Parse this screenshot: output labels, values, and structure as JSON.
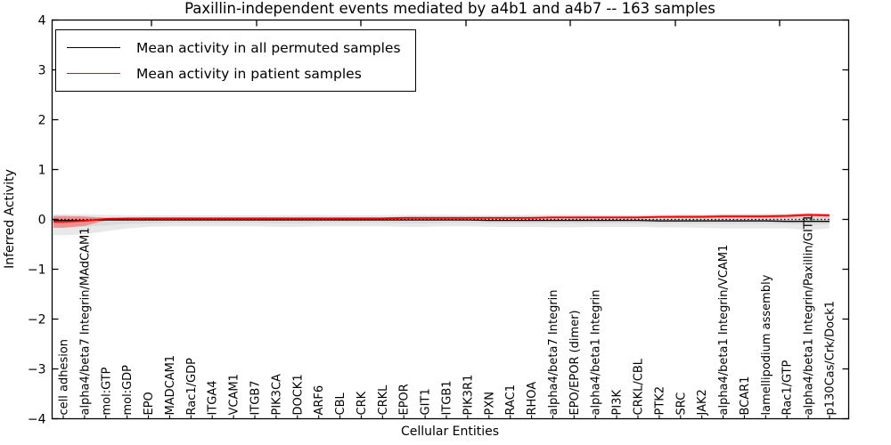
{
  "figure": {
    "title": "Paxillin-independent events mediated by a4b1 and a4b7 -- 163 samples",
    "xlabel": "Cellular Entities",
    "ylabel": "Inferred Activity"
  },
  "legend": {
    "items": [
      {
        "label": "Mean activity in all permuted samples",
        "color": "#000000"
      },
      {
        "label": "Mean activity in patient samples",
        "color": "#ff0000"
      }
    ]
  },
  "chart_data": {
    "type": "line",
    "title": "Paxillin-independent events mediated by a4b1 and a4b7 -- 163 samples",
    "xlabel": "Cellular Entities",
    "ylabel": "Inferred Activity",
    "ylim": [
      -4,
      4
    ],
    "yticks": [
      4,
      3,
      2,
      1,
      0,
      -1,
      -2,
      -3,
      -4
    ],
    "yticklabels": [
      "4",
      "3",
      "2",
      "1",
      "0",
      "−1",
      "−2",
      "−3",
      "−4"
    ],
    "grid": false,
    "legend_position": "upper left",
    "baseline": {
      "y": 0,
      "style": "dotted",
      "color": "#000000"
    },
    "categories": [
      "cell adhesion",
      "alpha4/beta7 Integrin/MAdCAM1",
      "mol:GTP",
      "mol:GDP",
      "EPO",
      "MADCAM1",
      "Rac1/GDP",
      "ITGA4",
      "VCAM1",
      "ITGB7",
      "PIK3CA",
      "DOCK1",
      "ARF6",
      "CBL",
      "CRK",
      "CRKL",
      "EPOR",
      "GIT1",
      "ITGB1",
      "PIK3R1",
      "PXN",
      "RAC1",
      "RHOA",
      "alpha4/beta7 Integrin",
      "EPO/EPOR (dimer)",
      "alpha4/beta1 Integrin",
      "PI3K",
      "CRKL/CBL",
      "PTK2",
      "SRC",
      "JAK2",
      "alpha4/beta1 Integrin/VCAM1",
      "BCAR1",
      "lamellipodium assembly",
      "Rac1/GTP",
      "alpha4/beta1 Integrin/Paxillin/GIT1",
      "p130Cas/Crk/Dock1"
    ],
    "series": [
      {
        "name": "Mean activity in all permuted samples",
        "color": "#000000",
        "style": "solid",
        "values": [
          -0.02,
          -0.02,
          -0.01,
          -0.01,
          -0.01,
          -0.01,
          -0.01,
          -0.01,
          -0.01,
          -0.01,
          -0.01,
          -0.01,
          -0.01,
          -0.01,
          -0.01,
          -0.01,
          -0.01,
          -0.01,
          -0.01,
          -0.01,
          -0.02,
          -0.02,
          -0.02,
          -0.02,
          -0.02,
          -0.02,
          -0.02,
          -0.02,
          -0.03,
          -0.03,
          -0.03,
          -0.03,
          -0.03,
          -0.03,
          -0.04,
          -0.04,
          -0.04
        ]
      },
      {
        "name": "Mean activity in patient samples",
        "color": "#ff0000",
        "style": "solid",
        "values": [
          -0.05,
          -0.03,
          0.01,
          0.02,
          0.02,
          0.02,
          0.02,
          0.02,
          0.02,
          0.02,
          0.02,
          0.02,
          0.02,
          0.02,
          0.02,
          0.02,
          0.03,
          0.03,
          0.03,
          0.03,
          0.03,
          0.03,
          0.03,
          0.04,
          0.04,
          0.04,
          0.04,
          0.04,
          0.05,
          0.05,
          0.05,
          0.06,
          0.06,
          0.06,
          0.07,
          0.09,
          0.08
        ]
      }
    ],
    "bands": [
      {
        "name": "permuted-outer-band",
        "color": "#e8e8e8",
        "upper": [
          0.1,
          0.1,
          0.09,
          0.08,
          0.08,
          0.08,
          0.08,
          0.08,
          0.08,
          0.08,
          0.08,
          0.09,
          0.09,
          0.08,
          0.08,
          0.08,
          0.09,
          0.09,
          0.09,
          0.08,
          0.08,
          0.09,
          0.09,
          0.1,
          0.1,
          0.09,
          0.09,
          0.09,
          0.1,
          0.1,
          0.1,
          0.11,
          0.11,
          0.11,
          0.11,
          0.13,
          0.11
        ],
        "lower": [
          -0.32,
          -0.3,
          -0.24,
          -0.18,
          -0.15,
          -0.14,
          -0.14,
          -0.14,
          -0.14,
          -0.14,
          -0.15,
          -0.15,
          -0.14,
          -0.14,
          -0.14,
          -0.14,
          -0.15,
          -0.15,
          -0.14,
          -0.14,
          -0.15,
          -0.15,
          -0.15,
          -0.16,
          -0.16,
          -0.15,
          -0.15,
          -0.15,
          -0.16,
          -0.16,
          -0.17,
          -0.18,
          -0.18,
          -0.18,
          -0.18,
          -0.22,
          -0.18
        ]
      },
      {
        "name": "permuted-inner-band",
        "color": "#dadada",
        "upper": [
          0.05,
          0.05,
          0.04,
          0.04,
          0.04,
          0.04,
          0.04,
          0.04,
          0.04,
          0.04,
          0.04,
          0.04,
          0.04,
          0.04,
          0.04,
          0.04,
          0.04,
          0.04,
          0.04,
          0.04,
          0.04,
          0.04,
          0.04,
          0.05,
          0.05,
          0.04,
          0.04,
          0.04,
          0.05,
          0.05,
          0.05,
          0.05,
          0.05,
          0.05,
          0.05,
          0.06,
          0.05
        ],
        "lower": [
          -0.16,
          -0.15,
          -0.12,
          -0.09,
          -0.08,
          -0.07,
          -0.07,
          -0.07,
          -0.07,
          -0.07,
          -0.08,
          -0.08,
          -0.07,
          -0.07,
          -0.07,
          -0.07,
          -0.08,
          -0.08,
          -0.07,
          -0.07,
          -0.08,
          -0.08,
          -0.08,
          -0.08,
          -0.08,
          -0.08,
          -0.08,
          -0.08,
          -0.08,
          -0.08,
          -0.09,
          -0.09,
          -0.09,
          -0.09,
          -0.09,
          -0.11,
          -0.09
        ]
      },
      {
        "name": "patient-band",
        "color": "rgba(255,60,60,0.45)",
        "upper": [
          0.07,
          0.06,
          0.03,
          0.03,
          0.04,
          0.04,
          0.04,
          0.04,
          0.04,
          0.04,
          0.04,
          0.04,
          0.04,
          0.04,
          0.04,
          0.04,
          0.05,
          0.05,
          0.05,
          0.05,
          0.05,
          0.05,
          0.05,
          0.06,
          0.06,
          0.06,
          0.06,
          0.06,
          0.07,
          0.08,
          0.08,
          0.09,
          0.09,
          0.09,
          0.1,
          0.12,
          0.11
        ],
        "lower": [
          -0.17,
          -0.13,
          -0.02,
          0.0,
          0.01,
          0.01,
          0.01,
          0.01,
          0.01,
          0.01,
          0.01,
          0.01,
          0.01,
          0.01,
          0.01,
          0.01,
          0.01,
          0.01,
          0.01,
          0.01,
          0.01,
          0.01,
          0.01,
          0.02,
          0.02,
          0.02,
          0.02,
          0.02,
          0.03,
          0.03,
          0.03,
          0.03,
          0.03,
          0.03,
          0.04,
          0.06,
          0.05
        ]
      }
    ]
  }
}
